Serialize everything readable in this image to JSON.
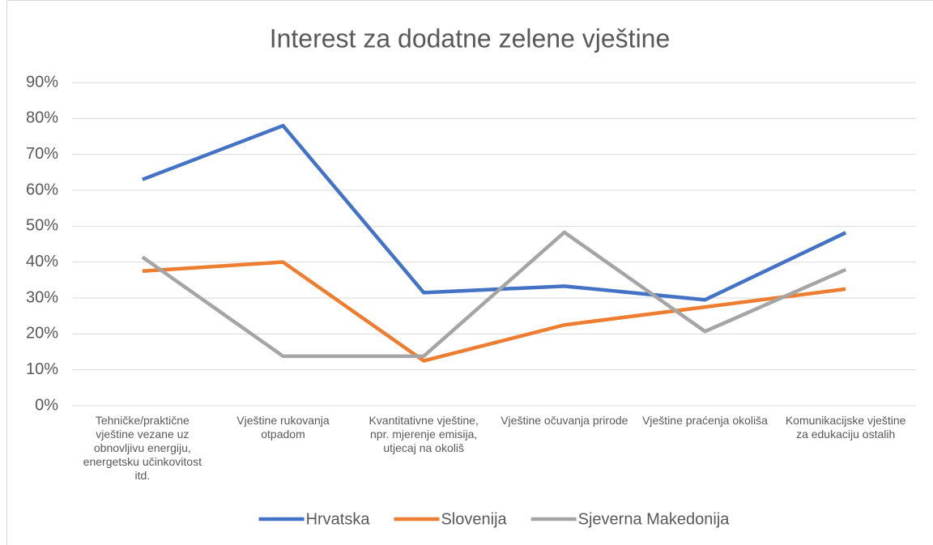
{
  "chart_data": {
    "type": "line",
    "title": "Interest za dodatne zelene vještine",
    "categories": [
      "Tehničke/praktične vještine vezane uz obnovljivu energiju, energetsku učinkovitost itd.",
      "Vještine rukovanja otpadom",
      "Kvantitativne vještine, npr. mjerenje emisija, utjecaj na okoliš",
      "Vještine očuvanja prirode",
      "Vještine praćenja okoliša",
      "Komunikacijske vještine za edukaciju ostalih"
    ],
    "series": [
      {
        "name": "Hrvatska",
        "color": "#4472c4",
        "values": [
          63,
          78,
          31.5,
          33.3,
          29.5,
          48.2
        ]
      },
      {
        "name": "Slovenija",
        "color": "#ed7d31",
        "values": [
          37.5,
          40,
          12.5,
          22.5,
          27.5,
          32.5
        ]
      },
      {
        "name": "Sjeverna Makedonija",
        "color": "#a5a5a5",
        "values": [
          41.4,
          13.8,
          13.8,
          48.3,
          20.7,
          37.9
        ]
      }
    ],
    "ylim": [
      0,
      90
    ],
    "yticks": [
      {
        "value": 0,
        "label": "0%"
      },
      {
        "value": 10,
        "label": "10%"
      },
      {
        "value": 20,
        "label": "20%"
      },
      {
        "value": 30,
        "label": "30%"
      },
      {
        "value": 40,
        "label": "40%"
      },
      {
        "value": 50,
        "label": "50%"
      },
      {
        "value": 60,
        "label": "60%"
      },
      {
        "value": 70,
        "label": "70%"
      },
      {
        "value": 80,
        "label": "80%"
      },
      {
        "value": 90,
        "label": "90%"
      }
    ],
    "grid": true,
    "legend": "bottom"
  }
}
